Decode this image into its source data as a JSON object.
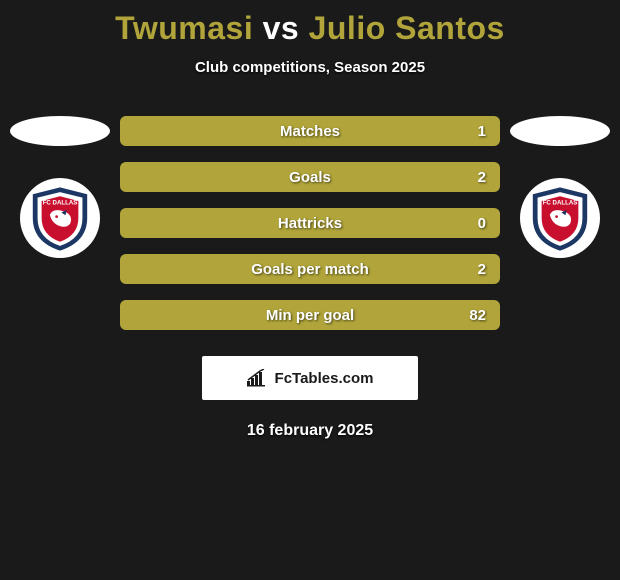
{
  "title": {
    "player1": "Twumasi",
    "vs": "vs",
    "player2": "Julio Santos",
    "player1_color": "#b0a43a",
    "player2_color": "#b0a43a"
  },
  "subtitle": "Club competitions, Season 2025",
  "stats": {
    "bar_left_color": "#5d5a33",
    "bar_right_color": "#b0a43a",
    "rows": [
      {
        "label": "Matches",
        "left": "",
        "right": "1",
        "split_pct": 0
      },
      {
        "label": "Goals",
        "left": "",
        "right": "2",
        "split_pct": 0
      },
      {
        "label": "Hattricks",
        "left": "",
        "right": "0",
        "split_pct": 0
      },
      {
        "label": "Goals per match",
        "left": "",
        "right": "2",
        "split_pct": 0
      },
      {
        "label": "Min per goal",
        "left": "",
        "right": "82",
        "split_pct": 0
      }
    ]
  },
  "badge": {
    "team_name": "FC DALLAS",
    "outer_color": "#1c3763",
    "inner_color": "#c8102e",
    "text_color": "#ffffff"
  },
  "attribution": {
    "text": "FcTables.com",
    "icon_color": "#1a1a1a"
  },
  "date": "16 february 2025"
}
